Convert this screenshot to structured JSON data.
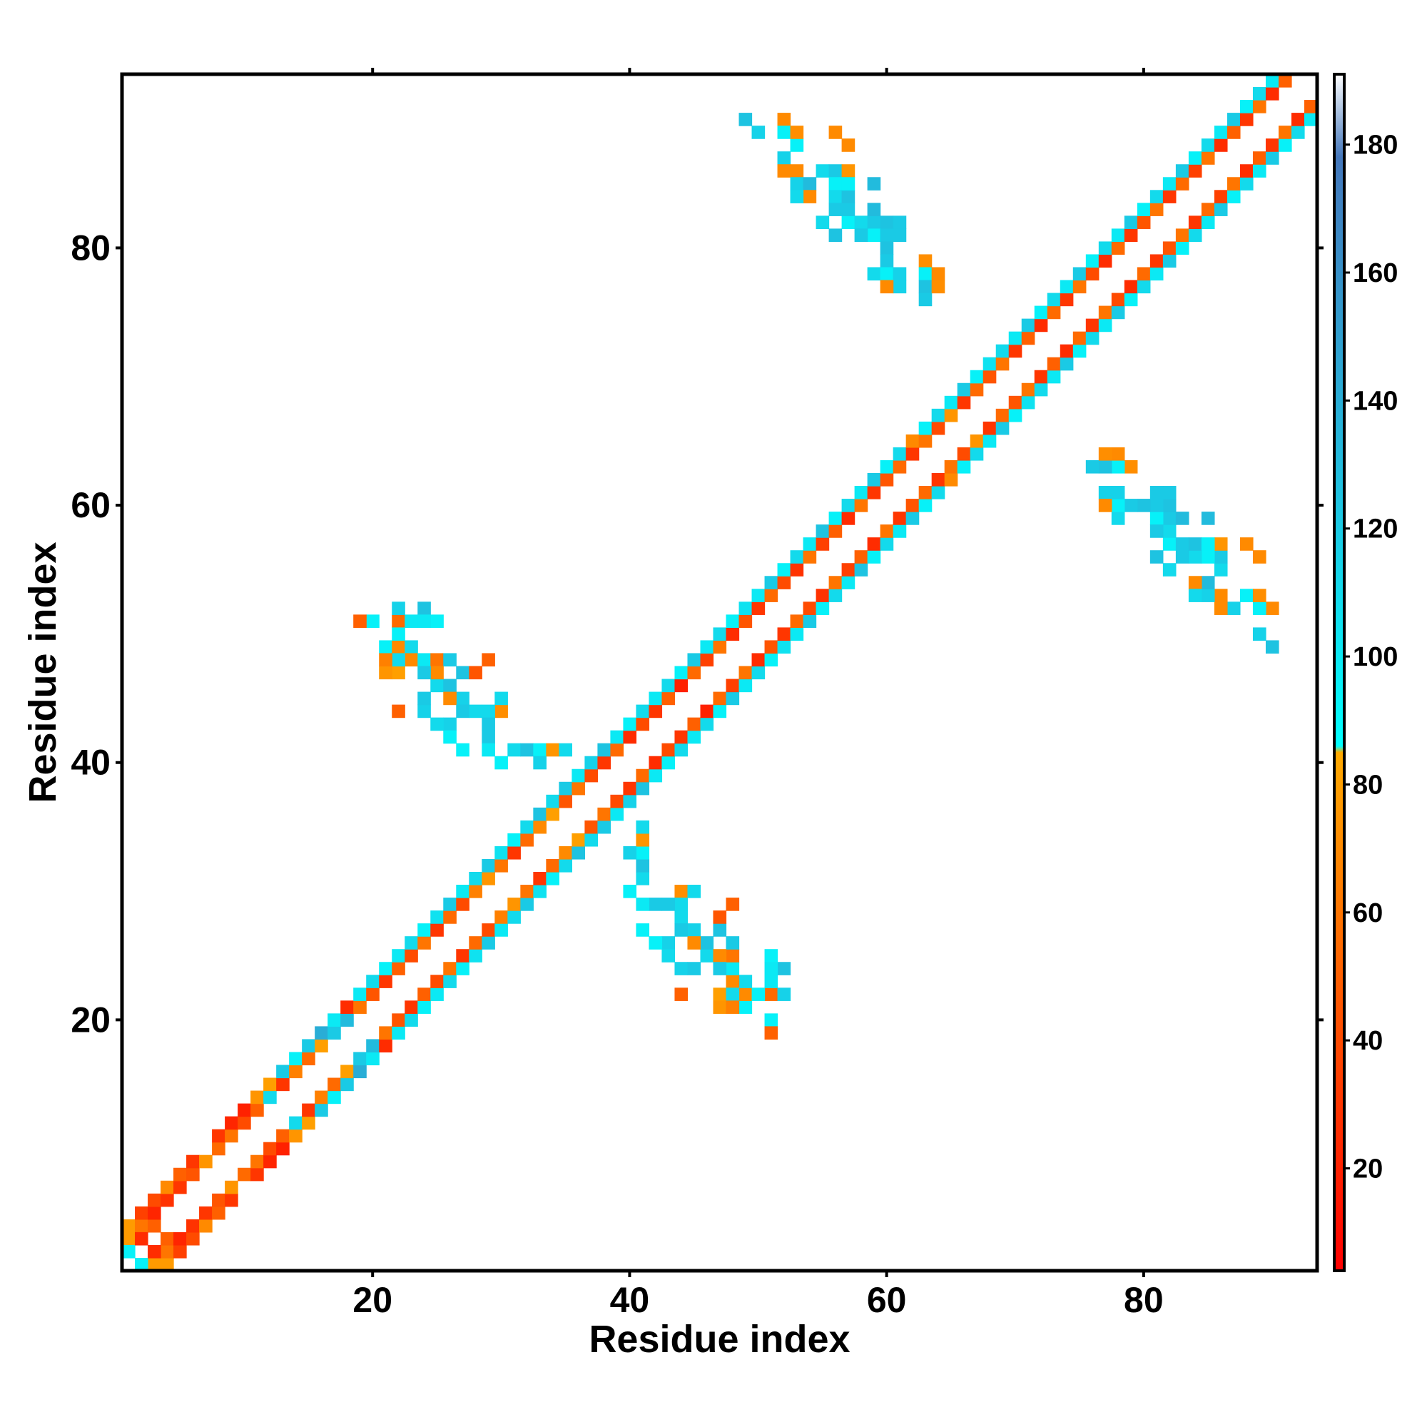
{
  "chart_data": {
    "type": "heatmap",
    "title": "",
    "xlabel": "Residue index",
    "ylabel": "Residue index",
    "xlim": [
      0.5,
      93.5
    ],
    "ylim": [
      0.5,
      93.5
    ],
    "x_ticks": [
      20,
      40,
      60,
      80
    ],
    "y_ticks": [
      20,
      40,
      60,
      80
    ],
    "grid": false,
    "matrix_symmetric": true,
    "colorbar": {
      "range": [
        4,
        191
      ],
      "ticks": [
        20,
        40,
        60,
        80,
        100,
        120,
        140,
        160,
        180
      ],
      "stops": [
        {
          "value": 4,
          "color": "#ff0000"
        },
        {
          "value": 45,
          "color": "#ff5500"
        },
        {
          "value": 85,
          "color": "#ffaa00"
        },
        {
          "value": 86,
          "color": "#00ffff"
        },
        {
          "value": 130,
          "color": "#22bbdd"
        },
        {
          "value": 178,
          "color": "#4477bb"
        },
        {
          "value": 191,
          "color": "#ffffff"
        }
      ]
    },
    "band_pattern": {
      "note_value_by_offset": [
        null,
        22,
        58,
        97,
        135
      ],
      "diagonal_empty": true
    },
    "cells": [
      [
        1,
        3,
        78
      ],
      [
        1,
        4,
        78
      ],
      [
        2,
        4,
        60
      ],
      [
        3,
        4,
        50
      ],
      [
        2,
        5,
        35
      ],
      [
        3,
        5,
        22
      ],
      [
        1,
        2,
        95
      ],
      [
        2,
        3,
        25
      ],
      [
        3,
        6,
        40
      ],
      [
        4,
        6,
        28
      ],
      [
        4,
        7,
        70
      ],
      [
        5,
        7,
        30
      ],
      [
        5,
        8,
        50
      ],
      [
        6,
        8,
        45
      ],
      [
        6,
        9,
        30
      ],
      [
        7,
        9,
        75
      ],
      [
        8,
        10,
        55
      ],
      [
        8,
        11,
        30
      ],
      [
        9,
        11,
        60
      ],
      [
        9,
        12,
        22
      ],
      [
        10,
        12,
        40
      ],
      [
        10,
        13,
        20
      ],
      [
        11,
        13,
        50
      ],
      [
        11,
        14,
        75
      ],
      [
        12,
        14,
        110
      ],
      [
        12,
        15,
        80
      ],
      [
        13,
        15,
        30
      ],
      [
        13,
        16,
        120
      ],
      [
        14,
        16,
        65
      ],
      [
        14,
        17,
        95
      ],
      [
        15,
        17,
        55
      ],
      [
        15,
        18,
        120
      ],
      [
        16,
        18,
        80
      ],
      [
        16,
        19,
        140
      ],
      [
        17,
        19,
        120
      ],
      [
        17,
        20,
        100
      ],
      [
        18,
        20,
        130
      ],
      [
        18,
        21,
        25
      ],
      [
        19,
        21,
        60
      ],
      [
        19,
        22,
        100
      ],
      [
        20,
        22,
        45
      ],
      [
        20,
        23,
        110
      ],
      [
        21,
        23,
        30
      ],
      [
        21,
        24,
        95
      ],
      [
        22,
        24,
        50
      ],
      [
        22,
        25,
        100
      ],
      [
        23,
        25,
        40
      ],
      [
        23,
        26,
        110
      ],
      [
        24,
        26,
        60
      ],
      [
        24,
        27,
        95
      ],
      [
        25,
        27,
        30
      ],
      [
        25,
        28,
        105
      ],
      [
        26,
        28,
        55
      ],
      [
        26,
        29,
        120
      ],
      [
        27,
        29,
        40
      ],
      [
        27,
        30,
        100
      ],
      [
        28,
        30,
        65
      ],
      [
        28,
        31,
        110
      ],
      [
        29,
        31,
        75
      ],
      [
        29,
        32,
        120
      ],
      [
        30,
        32,
        60
      ],
      [
        30,
        33,
        105
      ],
      [
        31,
        33,
        30
      ],
      [
        31,
        34,
        95
      ],
      [
        32,
        34,
        55
      ],
      [
        32,
        35,
        110
      ],
      [
        33,
        35,
        70
      ],
      [
        33,
        36,
        125
      ],
      [
        34,
        36,
        80
      ],
      [
        34,
        37,
        110
      ],
      [
        35,
        37,
        45
      ],
      [
        35,
        38,
        120
      ],
      [
        36,
        38,
        60
      ],
      [
        36,
        39,
        100
      ],
      [
        37,
        39,
        40
      ],
      [
        37,
        40,
        115
      ],
      [
        38,
        40,
        30
      ],
      [
        38,
        41,
        125
      ],
      [
        39,
        41,
        55
      ],
      [
        39,
        42,
        100
      ],
      [
        40,
        42,
        25
      ],
      [
        40,
        43,
        95
      ],
      [
        41,
        43,
        40
      ],
      [
        41,
        44,
        110
      ],
      [
        42,
        44,
        30
      ],
      [
        42,
        45,
        100
      ],
      [
        43,
        45,
        50
      ],
      [
        43,
        46,
        110
      ],
      [
        44,
        46,
        20
      ],
      [
        44,
        47,
        95
      ],
      [
        45,
        47,
        55
      ],
      [
        45,
        48,
        120
      ],
      [
        46,
        48,
        35
      ],
      [
        46,
        49,
        100
      ],
      [
        47,
        49,
        60
      ],
      [
        47,
        50,
        110
      ],
      [
        48,
        50,
        25
      ],
      [
        48,
        51,
        95
      ],
      [
        49,
        51,
        45
      ],
      [
        49,
        52,
        105
      ],
      [
        50,
        52,
        30
      ],
      [
        50,
        53,
        100
      ],
      [
        51,
        53,
        55
      ],
      [
        51,
        54,
        120
      ],
      [
        52,
        54,
        40
      ],
      [
        52,
        55,
        95
      ],
      [
        53,
        55,
        28
      ],
      [
        53,
        56,
        110
      ],
      [
        54,
        56,
        60
      ],
      [
        54,
        57,
        100
      ],
      [
        55,
        57,
        35
      ],
      [
        55,
        58,
        125
      ],
      [
        56,
        58,
        50
      ],
      [
        56,
        59,
        95
      ],
      [
        57,
        59,
        25
      ],
      [
        57,
        60,
        110
      ],
      [
        58,
        60,
        60
      ],
      [
        58,
        61,
        100
      ],
      [
        59,
        61,
        30
      ],
      [
        59,
        62,
        120
      ],
      [
        60,
        62,
        45
      ],
      [
        60,
        63,
        95
      ],
      [
        61,
        63,
        55
      ],
      [
        61,
        64,
        110
      ],
      [
        62,
        64,
        30
      ],
      [
        62,
        65,
        70
      ],
      [
        63,
        65,
        60
      ],
      [
        63,
        66,
        95
      ],
      [
        64,
        66,
        40
      ],
      [
        64,
        67,
        110
      ],
      [
        65,
        67,
        75
      ],
      [
        65,
        68,
        100
      ],
      [
        66,
        68,
        30
      ],
      [
        66,
        69,
        120
      ],
      [
        67,
        69,
        55
      ],
      [
        67,
        70,
        95
      ],
      [
        68,
        70,
        45
      ],
      [
        68,
        71,
        105
      ],
      [
        69,
        71,
        60
      ],
      [
        69,
        72,
        110
      ],
      [
        70,
        72,
        30
      ],
      [
        70,
        73,
        100
      ],
      [
        71,
        73,
        50
      ],
      [
        71,
        74,
        120
      ],
      [
        72,
        74,
        25
      ],
      [
        72,
        75,
        95
      ],
      [
        73,
        75,
        55
      ],
      [
        73,
        76,
        110
      ],
      [
        74,
        76,
        30
      ],
      [
        74,
        77,
        100
      ],
      [
        75,
        77,
        60
      ],
      [
        75,
        78,
        120
      ],
      [
        76,
        78,
        40
      ],
      [
        76,
        79,
        95
      ],
      [
        77,
        79,
        25
      ],
      [
        77,
        80,
        110
      ],
      [
        78,
        80,
        55
      ],
      [
        78,
        81,
        100
      ],
      [
        79,
        81,
        30
      ],
      [
        79,
        82,
        120
      ],
      [
        80,
        82,
        45
      ],
      [
        80,
        83,
        95
      ],
      [
        81,
        83,
        60
      ],
      [
        81,
        84,
        110
      ],
      [
        82,
        84,
        30
      ],
      [
        82,
        85,
        100
      ],
      [
        83,
        85,
        55
      ],
      [
        83,
        86,
        120
      ],
      [
        84,
        86,
        35
      ],
      [
        84,
        87,
        95
      ],
      [
        85,
        87,
        60
      ],
      [
        85,
        88,
        110
      ],
      [
        86,
        88,
        25
      ],
      [
        86,
        89,
        100
      ],
      [
        87,
        89,
        50
      ],
      [
        87,
        90,
        120
      ],
      [
        88,
        90,
        30
      ],
      [
        88,
        91,
        95
      ],
      [
        89,
        91,
        60
      ],
      [
        89,
        92,
        110
      ],
      [
        90,
        92,
        25
      ],
      [
        90,
        93,
        100
      ],
      [
        91,
        93,
        50
      ],
      [
        22,
        51,
        55
      ],
      [
        23,
        51,
        100
      ],
      [
        25,
        51,
        95
      ],
      [
        24,
        52,
        125
      ],
      [
        21,
        49,
        95
      ],
      [
        22,
        49,
        70
      ],
      [
        23,
        49,
        110
      ],
      [
        23,
        48,
        70
      ],
      [
        24,
        48,
        100
      ],
      [
        25,
        48,
        60
      ],
      [
        26,
        48,
        120
      ],
      [
        27,
        47,
        125
      ],
      [
        28,
        47,
        45
      ],
      [
        25,
        46,
        110
      ],
      [
        26,
        46,
        125
      ],
      [
        27,
        45,
        115
      ],
      [
        26,
        45,
        70
      ],
      [
        28,
        44,
        110
      ],
      [
        30,
        44,
        72
      ],
      [
        22,
        44,
        50
      ],
      [
        24,
        44,
        115
      ],
      [
        29,
        44,
        110
      ],
      [
        26,
        43,
        115
      ],
      [
        29,
        43,
        120
      ],
      [
        29,
        42,
        120
      ],
      [
        27,
        41,
        95
      ],
      [
        29,
        41,
        100
      ],
      [
        31,
        41,
        110
      ],
      [
        32,
        41,
        125
      ],
      [
        33,
        41,
        95
      ],
      [
        34,
        41,
        75
      ],
      [
        30,
        40,
        95
      ],
      [
        41,
        35,
        110
      ],
      [
        40,
        33,
        115
      ],
      [
        41,
        32,
        100
      ],
      [
        40,
        30,
        95
      ],
      [
        41,
        29,
        110
      ],
      [
        42,
        29,
        120
      ],
      [
        43,
        29,
        125
      ],
      [
        44,
        30,
        70
      ],
      [
        45,
        30,
        110
      ],
      [
        44,
        28,
        115
      ],
      [
        44,
        27,
        120
      ],
      [
        45,
        26,
        110
      ],
      [
        48,
        29,
        50
      ],
      [
        42,
        26,
        95
      ],
      [
        43,
        25,
        110
      ],
      [
        46,
        25,
        115
      ],
      [
        47,
        25,
        70
      ],
      [
        48,
        25,
        80
      ],
      [
        45,
        24,
        120
      ],
      [
        44,
        24,
        115
      ],
      [
        47,
        24,
        120
      ],
      [
        48,
        24,
        125
      ],
      [
        51,
        24,
        100
      ],
      [
        44,
        22,
        45
      ],
      [
        47,
        22,
        80
      ],
      [
        48,
        22,
        110
      ],
      [
        49,
        22,
        120
      ],
      [
        50,
        22,
        95
      ],
      [
        51,
        22,
        70
      ],
      [
        52,
        22,
        115
      ],
      [
        47,
        21,
        75
      ],
      [
        48,
        21,
        65
      ],
      [
        51,
        20,
        95
      ],
      [
        51,
        19,
        50
      ],
      [
        49,
        90,
        125
      ],
      [
        52,
        90,
        70
      ],
      [
        52,
        89,
        95
      ],
      [
        56,
        89,
        70
      ],
      [
        52,
        87,
        115
      ],
      [
        52,
        86,
        70
      ],
      [
        53,
        86,
        70
      ],
      [
        55,
        86,
        110
      ],
      [
        56,
        86,
        120
      ],
      [
        57,
        86,
        75
      ],
      [
        53,
        85,
        115
      ],
      [
        54,
        85,
        130
      ],
      [
        56,
        85,
        95
      ],
      [
        59,
        85,
        130
      ],
      [
        56,
        84,
        110
      ],
      [
        56,
        83,
        120
      ],
      [
        55,
        82,
        110
      ],
      [
        57,
        82,
        95
      ],
      [
        58,
        82,
        110
      ],
      [
        59,
        82,
        120
      ],
      [
        60,
        82,
        125
      ],
      [
        61,
        82,
        120
      ],
      [
        56,
        81,
        125
      ],
      [
        59,
        81,
        95
      ],
      [
        60,
        81,
        120
      ],
      [
        60,
        80,
        125
      ],
      [
        60,
        79,
        120
      ],
      [
        63,
        79,
        72
      ],
      [
        59,
        78,
        110
      ],
      [
        60,
        78,
        95
      ],
      [
        61,
        78,
        115
      ],
      [
        63,
        78,
        95
      ],
      [
        64,
        78,
        70
      ],
      [
        63,
        77,
        125
      ],
      [
        76,
        63,
        120
      ],
      [
        77,
        64,
        72
      ],
      [
        77,
        63,
        95
      ],
      [
        78,
        63,
        70
      ],
      [
        77,
        61,
        115
      ],
      [
        77,
        60,
        70
      ],
      [
        78,
        60,
        115
      ],
      [
        79,
        60,
        120
      ],
      [
        80,
        60,
        110
      ],
      [
        81,
        61,
        120
      ],
      [
        81,
        59,
        110
      ],
      [
        83,
        59,
        130
      ],
      [
        81,
        58,
        120
      ],
      [
        82,
        57,
        110
      ],
      [
        83,
        57,
        120
      ],
      [
        84,
        57,
        125
      ],
      [
        85,
        57,
        95
      ],
      [
        88,
        57,
        70
      ],
      [
        85,
        56,
        75
      ],
      [
        84,
        54,
        70
      ],
      [
        85,
        54,
        115
      ],
      [
        84,
        53,
        110
      ],
      [
        86,
        53,
        95
      ],
      [
        88,
        53,
        95
      ],
      [
        89,
        53,
        72
      ],
      [
        89,
        50,
        115
      ]
    ]
  }
}
